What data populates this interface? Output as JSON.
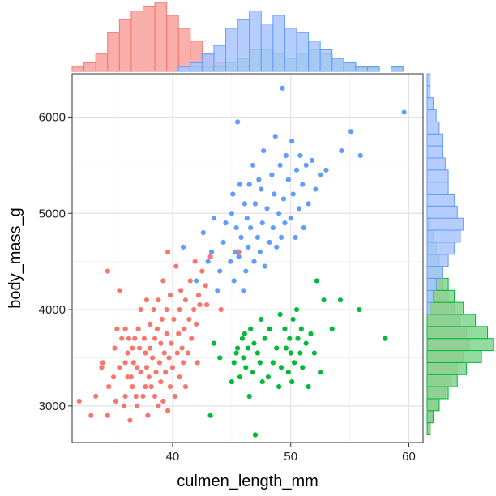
{
  "chart_data": {
    "type": "scatter",
    "title": "",
    "xlabel": "culmen_length_mm",
    "ylabel": "body_mass_g",
    "xlim": [
      31.5,
      61.2
    ],
    "ylim": [
      2620,
      6450
    ],
    "x_ticks": [
      40,
      50,
      60
    ],
    "y_ticks": [
      3000,
      4000,
      5000,
      6000
    ],
    "x_tick_labels": [
      "40",
      "50",
      "60"
    ],
    "y_tick_labels": [
      "3000",
      "4000",
      "5000",
      "6000"
    ],
    "grid": true,
    "legend": "none",
    "marginal": "histogram",
    "series": [
      {
        "color": "#F8766D",
        "fill": "#F8A19C",
        "points": [
          [
            32.1,
            3050
          ],
          [
            33.1,
            2900
          ],
          [
            33.5,
            3100
          ],
          [
            34.0,
            3400
          ],
          [
            34.1,
            3450
          ],
          [
            34.5,
            2900
          ],
          [
            34.5,
            4400
          ],
          [
            34.6,
            3200
          ],
          [
            35.0,
            3300
          ],
          [
            35.1,
            3600
          ],
          [
            35.2,
            3050
          ],
          [
            35.3,
            3800
          ],
          [
            35.5,
            3400
          ],
          [
            35.5,
            4200
          ],
          [
            35.7,
            3700
          ],
          [
            35.9,
            3000
          ],
          [
            36.0,
            3100
          ],
          [
            36.0,
            3450
          ],
          [
            36.0,
            3800
          ],
          [
            36.2,
            3300
          ],
          [
            36.2,
            3550
          ],
          [
            36.3,
            3700
          ],
          [
            36.4,
            2850
          ],
          [
            36.5,
            3300
          ],
          [
            36.6,
            3200
          ],
          [
            36.6,
            3600
          ],
          [
            36.7,
            3450
          ],
          [
            36.8,
            3700
          ],
          [
            36.9,
            3100
          ],
          [
            37.0,
            3000
          ],
          [
            37.0,
            3400
          ],
          [
            37.1,
            3800
          ],
          [
            37.2,
            3600
          ],
          [
            37.3,
            3350
          ],
          [
            37.3,
            4000
          ],
          [
            37.5,
            3100
          ],
          [
            37.6,
            3700
          ],
          [
            37.7,
            3200
          ],
          [
            37.7,
            3550
          ],
          [
            37.8,
            3400
          ],
          [
            37.8,
            4100
          ],
          [
            37.9,
            2900
          ],
          [
            38.0,
            3300
          ],
          [
            38.1,
            3600
          ],
          [
            38.1,
            3850
          ],
          [
            38.2,
            3200
          ],
          [
            38.3,
            3500
          ],
          [
            38.4,
            4000
          ],
          [
            38.5,
            3100
          ],
          [
            38.5,
            3700
          ],
          [
            38.6,
            3350
          ],
          [
            38.7,
            3800
          ],
          [
            38.8,
            3000
          ],
          [
            38.8,
            4100
          ],
          [
            38.9,
            3450
          ],
          [
            39.0,
            3250
          ],
          [
            39.0,
            3650
          ],
          [
            39.1,
            3900
          ],
          [
            39.2,
            3050
          ],
          [
            39.2,
            4300
          ],
          [
            39.3,
            3550
          ],
          [
            39.4,
            3350
          ],
          [
            39.5,
            3750
          ],
          [
            39.5,
            4000
          ],
          [
            39.6,
            2950
          ],
          [
            39.6,
            4600
          ],
          [
            39.7,
            3500
          ],
          [
            39.8,
            3200
          ],
          [
            39.8,
            4150
          ],
          [
            39.9,
            3650
          ],
          [
            40.0,
            3400
          ],
          [
            40.1,
            3900
          ],
          [
            40.2,
            3100
          ],
          [
            40.3,
            4450
          ],
          [
            40.4,
            3550
          ],
          [
            40.5,
            3750
          ],
          [
            40.6,
            3300
          ],
          [
            40.6,
            4000
          ],
          [
            40.7,
            4200
          ],
          [
            40.8,
            3600
          ],
          [
            40.9,
            3450
          ],
          [
            41.0,
            3800
          ],
          [
            41.1,
            3200
          ],
          [
            41.1,
            4100
          ],
          [
            41.3,
            3550
          ],
          [
            41.4,
            3900
          ],
          [
            41.5,
            4300
          ],
          [
            41.6,
            3700
          ],
          [
            41.8,
            4000
          ],
          [
            41.9,
            4500
          ],
          [
            42.0,
            3850
          ],
          [
            42.1,
            3450
          ],
          [
            42.2,
            4150
          ],
          [
            42.3,
            4050
          ],
          [
            42.5,
            4400
          ],
          [
            42.8,
            4250
          ],
          [
            42.9,
            4050
          ],
          [
            43.2,
            4550
          ],
          [
            44.1,
            4000
          ],
          [
            45.6,
            4600
          ]
        ]
      },
      {
        "color": "#00BA38",
        "fill": "#7FD68F",
        "points": [
          [
            43.2,
            2900
          ],
          [
            43.5,
            3650
          ],
          [
            44.0,
            3500
          ],
          [
            45.0,
            3250
          ],
          [
            45.2,
            3450
          ],
          [
            45.4,
            3550
          ],
          [
            45.5,
            3600
          ],
          [
            45.7,
            3300
          ],
          [
            45.9,
            3700
          ],
          [
            46.0,
            3500
          ],
          [
            46.1,
            3750
          ],
          [
            46.2,
            3400
          ],
          [
            46.4,
            3600
          ],
          [
            46.5,
            3100
          ],
          [
            46.6,
            3800
          ],
          [
            46.8,
            3350
          ],
          [
            46.9,
            3650
          ],
          [
            47.0,
            2700
          ],
          [
            47.2,
            3550
          ],
          [
            47.4,
            3450
          ],
          [
            47.5,
            3900
          ],
          [
            47.6,
            3250
          ],
          [
            47.8,
            3700
          ],
          [
            48.1,
            3300
          ],
          [
            48.2,
            3800
          ],
          [
            48.5,
            3450
          ],
          [
            48.8,
            3600
          ],
          [
            49.0,
            3200
          ],
          [
            49.1,
            3950
          ],
          [
            49.2,
            3400
          ],
          [
            49.5,
            3800
          ],
          [
            49.6,
            3600
          ],
          [
            49.8,
            3350
          ],
          [
            49.9,
            3700
          ],
          [
            50.0,
            3550
          ],
          [
            50.1,
            3250
          ],
          [
            50.2,
            3900
          ],
          [
            50.3,
            3450
          ],
          [
            50.5,
            4000
          ],
          [
            50.6,
            3700
          ],
          [
            50.8,
            3550
          ],
          [
            50.9,
            3800
          ],
          [
            51.0,
            3400
          ],
          [
            51.3,
            3650
          ],
          [
            51.5,
            3200
          ],
          [
            51.7,
            3750
          ],
          [
            52.0,
            3550
          ],
          [
            52.2,
            4300
          ],
          [
            52.5,
            3350
          ],
          [
            52.8,
            4100
          ],
          [
            53.5,
            3800
          ],
          [
            54.2,
            4100
          ],
          [
            55.8,
            4000
          ],
          [
            58.0,
            3700
          ]
        ]
      },
      {
        "color": "#619CFF",
        "fill": "#A9C5FF",
        "points": [
          [
            40.9,
            4650
          ],
          [
            42.0,
            4300
          ],
          [
            42.6,
            4800
          ],
          [
            43.0,
            4500
          ],
          [
            43.3,
            4600
          ],
          [
            43.5,
            4950
          ],
          [
            43.8,
            4200
          ],
          [
            44.0,
            4400
          ],
          [
            44.3,
            4700
          ],
          [
            44.5,
            4900
          ],
          [
            44.9,
            4500
          ],
          [
            45.0,
            5000
          ],
          [
            45.1,
            5200
          ],
          [
            45.2,
            4300
          ],
          [
            45.3,
            4600
          ],
          [
            45.4,
            4850
          ],
          [
            45.5,
            5950
          ],
          [
            45.6,
            4550
          ],
          [
            45.7,
            5300
          ],
          [
            45.8,
            4750
          ],
          [
            46.0,
            4200
          ],
          [
            46.1,
            5100
          ],
          [
            46.2,
            4400
          ],
          [
            46.3,
            4950
          ],
          [
            46.4,
            4650
          ],
          [
            46.5,
            5300
          ],
          [
            46.6,
            4850
          ],
          [
            46.8,
            5500
          ],
          [
            46.9,
            4500
          ],
          [
            47.0,
            5100
          ],
          [
            47.2,
            4750
          ],
          [
            47.3,
            5350
          ],
          [
            47.4,
            4600
          ],
          [
            47.5,
            5250
          ],
          [
            47.6,
            4900
          ],
          [
            47.7,
            5650
          ],
          [
            47.8,
            4450
          ],
          [
            48.0,
            5050
          ],
          [
            48.2,
            4700
          ],
          [
            48.4,
            5400
          ],
          [
            48.5,
            4850
          ],
          [
            48.6,
            5200
          ],
          [
            48.7,
            5800
          ],
          [
            48.8,
            4650
          ],
          [
            49.0,
            5000
          ],
          [
            49.1,
            5500
          ],
          [
            49.2,
            4750
          ],
          [
            49.3,
            6300
          ],
          [
            49.4,
            5150
          ],
          [
            49.5,
            4900
          ],
          [
            49.6,
            5600
          ],
          [
            49.8,
            5350
          ],
          [
            50.0,
            4950
          ],
          [
            50.1,
            5750
          ],
          [
            50.2,
            5200
          ],
          [
            50.4,
            4750
          ],
          [
            50.5,
            5450
          ],
          [
            50.7,
            5050
          ],
          [
            50.8,
            5600
          ],
          [
            51.0,
            5300
          ],
          [
            51.1,
            4850
          ],
          [
            51.3,
            5500
          ],
          [
            51.5,
            5100
          ],
          [
            51.8,
            5550
          ],
          [
            52.1,
            5250
          ],
          [
            52.5,
            5400
          ],
          [
            53.0,
            5450
          ],
          [
            54.3,
            5650
          ],
          [
            55.1,
            5850
          ],
          [
            55.9,
            5600
          ],
          [
            59.6,
            6050
          ]
        ]
      }
    ],
    "marginal_top": {
      "bin_start": 31.5,
      "bin_width": 1.0,
      "series": [
        {
          "color": "#F8766D",
          "fill": "#F8A19C",
          "counts": [
            1,
            2,
            4,
            9,
            12,
            14,
            15,
            16,
            13,
            10,
            7,
            4,
            2,
            1,
            1,
            0,
            0,
            0,
            0,
            0,
            0,
            0,
            0,
            0,
            0,
            0,
            0,
            0,
            0,
            0
          ]
        },
        {
          "color": "#00BA38",
          "fill": "#7FD68F",
          "counts": [
            0,
            0,
            0,
            0,
            0,
            0,
            0,
            0,
            0,
            0,
            1,
            1,
            1,
            2,
            3,
            5,
            5,
            4,
            3,
            4,
            5,
            4,
            3,
            2,
            1,
            1,
            0,
            1,
            0,
            0
          ]
        },
        {
          "color": "#619CFF",
          "fill": "#A9C5FF",
          "counts": [
            0,
            0,
            0,
            0,
            0,
            0,
            0,
            0,
            0,
            1,
            2,
            4,
            6,
            10,
            12,
            14,
            11,
            13,
            10,
            9,
            7,
            5,
            3,
            2,
            1,
            1,
            0,
            1,
            0,
            0
          ]
        }
      ]
    },
    "marginal_right": {
      "bin_start": 2700,
      "bin_width": 125,
      "series": [
        {
          "color": "#F8766D",
          "fill": "#F8A19C",
          "counts": [
            1,
            2,
            4,
            6,
            8,
            10,
            12,
            14,
            13,
            11,
            9,
            7,
            5,
            4,
            3,
            2,
            1,
            0,
            0,
            0,
            0,
            0,
            0,
            0,
            0,
            0,
            0,
            0,
            0,
            0
          ]
        },
        {
          "color": "#00BA38",
          "fill": "#7FD68F",
          "counts": [
            1,
            2,
            4,
            7,
            10,
            13,
            18,
            22,
            20,
            16,
            12,
            9,
            7,
            5,
            4,
            3,
            2,
            1,
            0,
            0,
            0,
            0,
            0,
            0,
            0,
            0,
            0,
            0,
            0,
            0
          ]
        },
        {
          "color": "#619CFF",
          "fill": "#A9C5FF",
          "counts": [
            0,
            0,
            0,
            0,
            0,
            0,
            0,
            0,
            0,
            0,
            1,
            2,
            3,
            5,
            7,
            9,
            11,
            12,
            10,
            9,
            7,
            7,
            6,
            5,
            5,
            4,
            3,
            2,
            1,
            1
          ]
        }
      ]
    }
  }
}
